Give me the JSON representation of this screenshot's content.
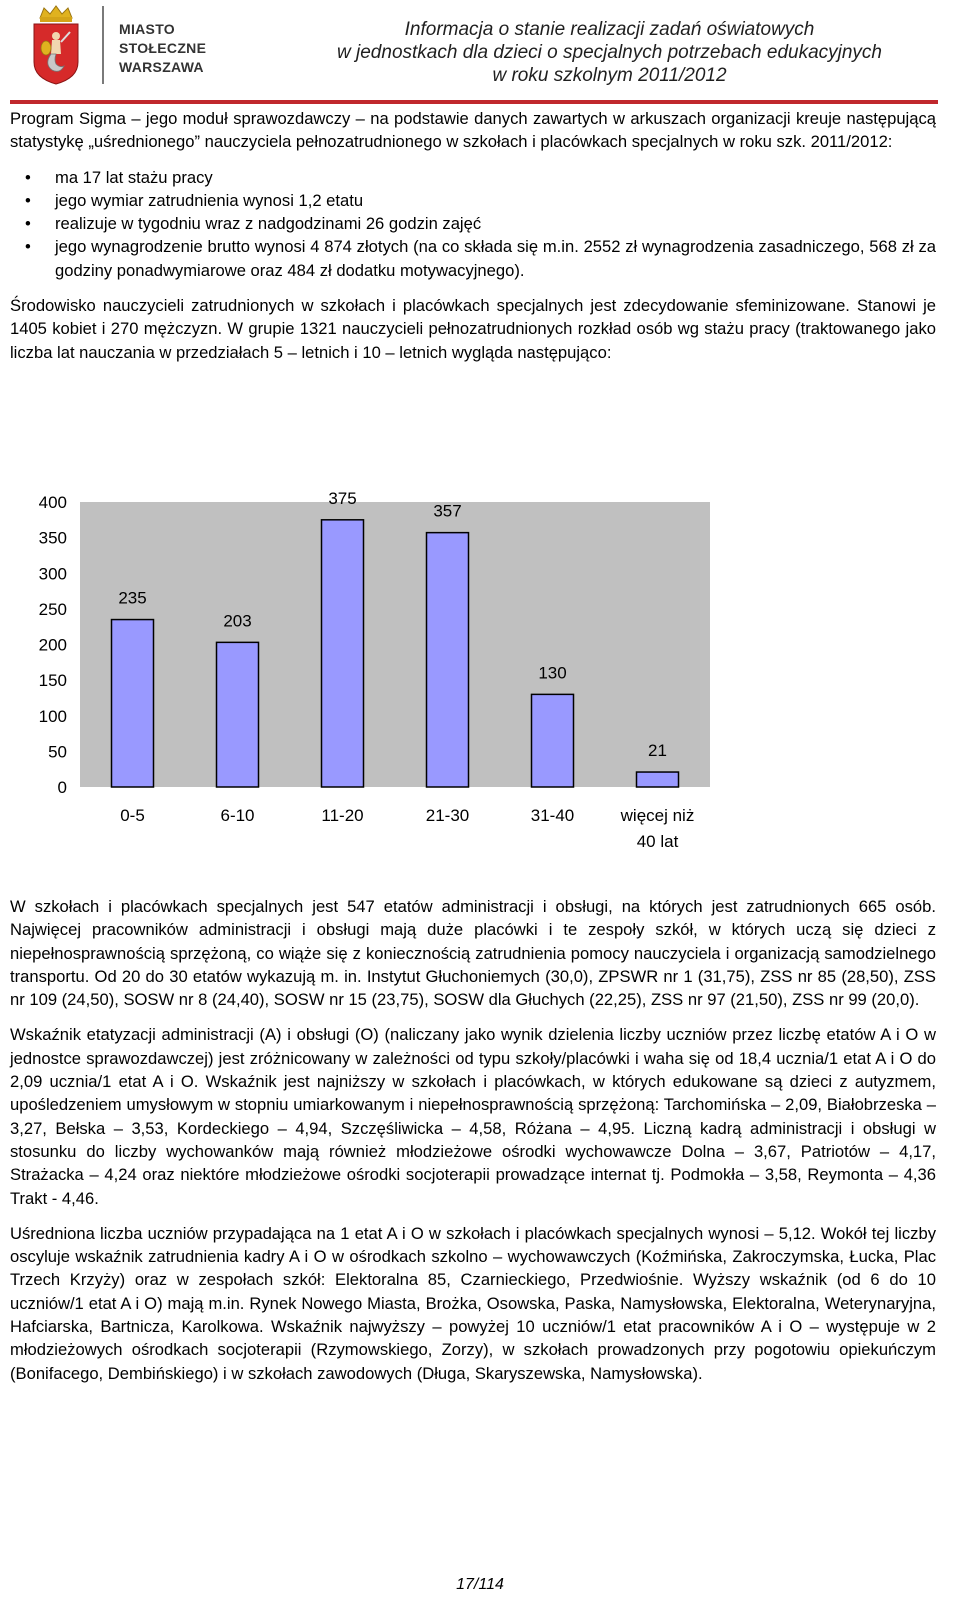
{
  "header": {
    "logo_lines": [
      "MIASTO",
      "STOŁECZNE",
      "WARSZAWA"
    ],
    "title_lines": [
      "Informacja o stanie realizacji zadań oświatowych",
      "w jednostkach dla dzieci o specjalnych potrzebach edukacyjnych",
      "w roku szkolnym 2011/2012"
    ]
  },
  "intro": "Program Sigma – jego moduł sprawozdawczy – na podstawie danych zawartych w arkuszach organizacji kreuje następującą statystykę „uśrednionego” nauczyciela pełnozatrudnionego w szkołach i placówkach specjalnych w roku szk. 2011/2012:",
  "bullets": [
    "ma 17 lat stażu pracy",
    "jego wymiar zatrudnienia wynosi 1,2 etatu",
    "realizuje w tygodniu wraz z nadgodzinami 26 godzin zajęć",
    "jego wynagrodzenie brutto wynosi 4 874 złotych (na co składa się m.in. 2552 zł wynagrodzenia zasadniczego, 568 zł za godziny ponadwymiarowe oraz 484 zł dodatku motywacyjnego)."
  ],
  "paragraph_2": "Środowisko nauczycieli zatrudnionych w szkołach i placówkach specjalnych jest zdecydowanie sfeminizowane. Stanowi je 1405 kobiet i 270 mężczyzn. W grupie 1321 nauczycieli pełnozatrudnionych rozkład osób wg stażu pracy (traktowanego jako liczba lat nauczania w przedziałach 5 – letnich i 10 – letnich wygląda następująco:",
  "chart_data": {
    "type": "bar",
    "categories": [
      "0-5",
      "6-10",
      "11-20",
      "21-30",
      "31-40",
      "więcej niż 40 lat"
    ],
    "category_lines": [
      [
        "0-5"
      ],
      [
        "6-10"
      ],
      [
        "11-20"
      ],
      [
        "21-30"
      ],
      [
        "31-40"
      ],
      [
        "więcej niż",
        "40 lat"
      ]
    ],
    "values": [
      235,
      203,
      375,
      357,
      130,
      21
    ],
    "value_labels": [
      "235",
      "203",
      "375",
      "357",
      "130",
      "21"
    ],
    "y_ticks": [
      "0",
      "50",
      "100",
      "150",
      "200",
      "250",
      "300",
      "350",
      "400"
    ],
    "ylim": [
      0,
      400
    ],
    "bar_color": "#9999ff",
    "plot_background": "#c0c0c0",
    "grid": false,
    "legend": "none",
    "title": "",
    "xlabel": "",
    "ylabel": ""
  },
  "paragraph_3": "W szkołach i placówkach specjalnych jest 547 etatów administracji i obsługi, na których jest zatrudnionych 665 osób. Najwięcej pracowników administracji i obsługi mają duże placówki i te zespoły szkół, w których uczą się dzieci z niepełnosprawnością sprzężoną, co wiąże się z koniecznością zatrudnienia pomocy nauczyciela i organizacją samodzielnego transportu. Od 20 do 30 etatów wykazują m. in. Instytut Głuchoniemych (30,0), ZPSWR nr 1 (31,75), ZSS nr 85 (28,50), ZSS nr 109 (24,50), SOSW nr 8 (24,40), SOSW nr 15 (23,75), SOSW dla Głuchych (22,25), ZSS nr 97 (21,50), ZSS nr 99 (20,0).",
  "paragraph_4": "Wskaźnik etatyzacji administracji (A) i obsługi (O) (naliczany jako wynik dzielenia liczby uczniów przez liczbę etatów A i O w jednostce sprawozdawczej) jest zróżnicowany w zależności od typu szkoły/placówki i waha się od 18,4 ucznia/1 etat A i O do 2,09 ucznia/1 etat A i O. Wskaźnik jest najniższy w szkołach i placówkach, w których edukowane są dzieci z autyzmem, upośledzeniem umysłowym w stopniu umiarkowanym i niepełnosprawnością sprzężoną: Tarchomińska – 2,09, Białobrzeska – 3,27, Bełska – 3,53, Kordeckiego – 4,94, Szczęśliwicka – 4,58, Różana – 4,95. Liczną kadrą administracji i obsługi w stosunku do liczby wychowanków mają również młodzieżowe ośrodki wychowawcze Dolna – 3,67, Patriotów – 4,17, Strażacka – 4,24 oraz niektóre młodzieżowe ośrodki socjoterapii prowadzące internat tj. Podmokła – 3,58, Reymonta – 4,36 Trakt - 4,46.",
  "paragraph_5": "Uśredniona liczba uczniów przypadająca na 1 etat A i O w szkołach i placówkach specjalnych wynosi – 5,12. Wokół tej liczby oscyluje wskaźnik zatrudnienia kadry A i O w ośrodkach szkolno – wychowawczych (Koźmińska, Zakroczymska, Łucka, Plac Trzech Krzyży) oraz w zespołach szkół: Elektoralna 85, Czarnieckiego, Przedwiośnie. Wyższy wskaźnik (od 6 do 10 uczniów/1 etat A i O) mają m.in. Rynek Nowego Miasta, Brożka, Osowska, Paska, Namysłowska, Elektoralna, Weterynaryjna, Hafciarska, Bartnicza, Karolkowa. Wskaźnik najwyższy – powyżej 10 uczniów/1 etat pracowników A i O – występuje w 2 młodzieżowych ośrodkach socjoterapii (Rzymowskiego, Zorzy), w szkołach prowadzonych przy pogotowiu opiekuńczym (Bonifacego, Dembińskiego) i w szkołach zawodowych (Długa, Skaryszewska, Namysłowska).",
  "footer": {
    "page": "17/114"
  }
}
